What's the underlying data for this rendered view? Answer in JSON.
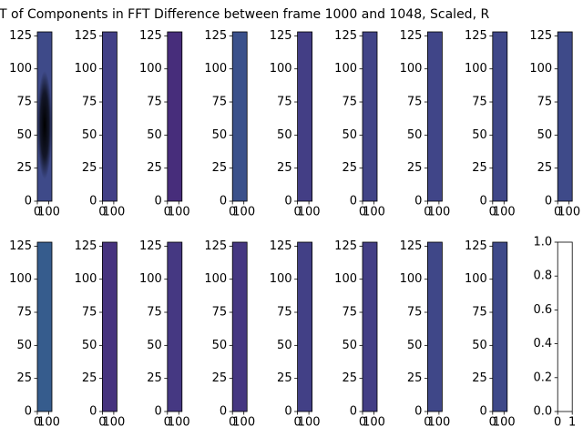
{
  "title": "T of Components in FFT Difference between frame 1000 and 1048, Scaled, R",
  "chart_data": [
    {
      "type": "image",
      "color": "#3e4a89",
      "highlight_color": "#2a9d8a",
      "xlim": [
        0,
        128
      ],
      "ylim": [
        0,
        128
      ],
      "xticks": [
        0,
        100
      ],
      "yticks": [
        0,
        25,
        50,
        75,
        100,
        125
      ]
    },
    {
      "type": "image",
      "color": "#424086",
      "xlim": [
        0,
        128
      ],
      "ylim": [
        0,
        128
      ],
      "xticks": [
        0,
        100
      ],
      "yticks": [
        0,
        25,
        50,
        75,
        100,
        125
      ]
    },
    {
      "type": "image",
      "color": "#472d7b",
      "xlim": [
        0,
        128
      ],
      "ylim": [
        0,
        128
      ],
      "xticks": [
        0,
        100
      ],
      "yticks": [
        0,
        25,
        50,
        75,
        100,
        125
      ]
    },
    {
      "type": "image",
      "color": "#3b518b",
      "xlim": [
        0,
        128
      ],
      "ylim": [
        0,
        128
      ],
      "xticks": [
        0,
        100
      ],
      "yticks": [
        0,
        25,
        50,
        75,
        100,
        125
      ]
    },
    {
      "type": "image",
      "color": "#433e85",
      "xlim": [
        0,
        128
      ],
      "ylim": [
        0,
        128
      ],
      "xticks": [
        0,
        100
      ],
      "yticks": [
        0,
        25,
        50,
        75,
        100,
        125
      ]
    },
    {
      "type": "image",
      "color": "#414487",
      "xlim": [
        0,
        128
      ],
      "ylim": [
        0,
        128
      ],
      "xticks": [
        0,
        100
      ],
      "yticks": [
        0,
        25,
        50,
        75,
        100,
        125
      ]
    },
    {
      "type": "image",
      "color": "#404588",
      "xlim": [
        0,
        128
      ],
      "ylim": [
        0,
        128
      ],
      "xticks": [
        0,
        100
      ],
      "yticks": [
        0,
        25,
        50,
        75,
        100,
        125
      ]
    },
    {
      "type": "image",
      "color": "#3f4788",
      "xlim": [
        0,
        128
      ],
      "ylim": [
        0,
        128
      ],
      "xticks": [
        0,
        100
      ],
      "yticks": [
        0,
        25,
        50,
        75,
        100,
        125
      ]
    },
    {
      "type": "image",
      "color": "#3e4a89",
      "xlim": [
        0,
        128
      ],
      "ylim": [
        0,
        128
      ],
      "xticks": [
        0,
        100
      ],
      "yticks": [
        0,
        25,
        50,
        75,
        100,
        125
      ]
    },
    {
      "type": "image",
      "color": "#365c8d",
      "xlim": [
        0,
        128
      ],
      "ylim": [
        0,
        128
      ],
      "xticks": [
        0,
        100
      ],
      "yticks": [
        0,
        25,
        50,
        75,
        100,
        125
      ]
    },
    {
      "type": "image",
      "color": "#46337e",
      "xlim": [
        0,
        128
      ],
      "ylim": [
        0,
        128
      ],
      "xticks": [
        0,
        100
      ],
      "yticks": [
        0,
        25,
        50,
        75,
        100,
        125
      ]
    },
    {
      "type": "image",
      "color": "#453882",
      "xlim": [
        0,
        128
      ],
      "ylim": [
        0,
        128
      ],
      "xticks": [
        0,
        100
      ],
      "yticks": [
        0,
        25,
        50,
        75,
        100,
        125
      ]
    },
    {
      "type": "image",
      "color": "#453781",
      "xlim": [
        0,
        128
      ],
      "ylim": [
        0,
        128
      ],
      "xticks": [
        0,
        100
      ],
      "yticks": [
        0,
        25,
        50,
        75,
        100,
        125
      ]
    },
    {
      "type": "image",
      "color": "#424086",
      "xlim": [
        0,
        128
      ],
      "ylim": [
        0,
        128
      ],
      "xticks": [
        0,
        100
      ],
      "yticks": [
        0,
        25,
        50,
        75,
        100,
        125
      ]
    },
    {
      "type": "image",
      "color": "#433e85",
      "xlim": [
        0,
        128
      ],
      "ylim": [
        0,
        128
      ],
      "xticks": [
        0,
        100
      ],
      "yticks": [
        0,
        25,
        50,
        75,
        100,
        125
      ]
    },
    {
      "type": "image",
      "color": "#3f4788",
      "xlim": [
        0,
        128
      ],
      "ylim": [
        0,
        128
      ],
      "xticks": [
        0,
        100
      ],
      "yticks": [
        0,
        25,
        50,
        75,
        100,
        125
      ]
    },
    {
      "type": "image",
      "color": "#3e4989",
      "xlim": [
        0,
        128
      ],
      "ylim": [
        0,
        128
      ],
      "xticks": [
        0,
        100
      ],
      "yticks": [
        0,
        25,
        50,
        75,
        100,
        125
      ]
    },
    {
      "type": "axes",
      "xlim": [
        0,
        1
      ],
      "ylim": [
        0,
        1
      ],
      "xticks": [
        0,
        1
      ],
      "yticks": [
        {
          "value": 0,
          "label": "0.0"
        },
        0.2,
        0.4,
        0.6,
        0.8,
        {
          "value": 1,
          "label": "1.0"
        }
      ]
    }
  ]
}
